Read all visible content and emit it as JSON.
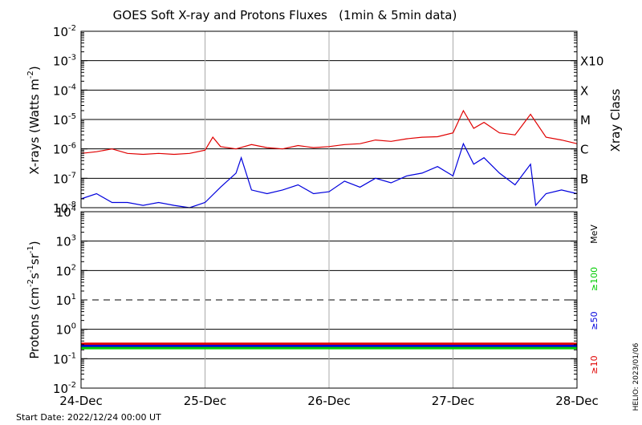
{
  "chart_data": {
    "type": "line",
    "title": "GOES Soft X-ray and Protons Fluxes   (1min & 5min data)",
    "x_tick_labels": [
      "24-Dec",
      "25-Dec",
      "26-Dec",
      "27-Dec",
      "28-Dec"
    ],
    "xlim": [
      "2022-12-24T00:00",
      "2022-12-28T00:00"
    ],
    "start_date_label": "Start Date: 2022/12/24 00:00 UT",
    "footer_label": "HELIO: 2023/01/06",
    "xray_panel": {
      "ylabel_main": "X-rays (Watts m",
      "ylabel_exp": "-2",
      "ylabel_end": ")",
      "y_scale": "log",
      "ylim": [
        1e-08,
        0.01
      ],
      "y_tick_exponents": [
        "-8",
        "-7",
        "-6",
        "-5",
        "-4",
        "-3",
        "-2"
      ],
      "class_axis_label": "Xray Class",
      "class_labels": [
        {
          "label": "B",
          "flux": 1e-07
        },
        {
          "label": "C",
          "flux": 1e-06
        },
        {
          "label": "M",
          "flux": 1e-05
        },
        {
          "label": "X",
          "flux": 0.0001
        },
        {
          "label": "X10",
          "flux": 0.001
        }
      ],
      "gridlines": [
        1e-07,
        1e-06,
        1e-05,
        0.0001,
        0.001
      ],
      "series": [
        {
          "color": "#e00000",
          "x": [
            "2022-12-24T00:00",
            "2022-12-24T03:00",
            "2022-12-24T06:00",
            "2022-12-24T09:00",
            "2022-12-24T12:00",
            "2022-12-24T15:00",
            "2022-12-24T18:00",
            "2022-12-24T21:00",
            "2022-12-25T00:00",
            "2022-12-25T01:30",
            "2022-12-25T03:00",
            "2022-12-25T06:00",
            "2022-12-25T09:00",
            "2022-12-25T12:00",
            "2022-12-25T15:00",
            "2022-12-25T18:00",
            "2022-12-25T21:00",
            "2022-12-26T00:00",
            "2022-12-26T03:00",
            "2022-12-26T06:00",
            "2022-12-26T09:00",
            "2022-12-26T12:00",
            "2022-12-26T15:00",
            "2022-12-26T18:00",
            "2022-12-26T21:00",
            "2022-12-27T00:00",
            "2022-12-27T02:00",
            "2022-12-27T04:00",
            "2022-12-27T06:00",
            "2022-12-27T09:00",
            "2022-12-27T12:00",
            "2022-12-27T15:00",
            "2022-12-27T18:00",
            "2022-12-27T21:00",
            "2022-12-28T00:00"
          ],
          "y": [
            7e-07,
            8e-07,
            1e-06,
            7e-07,
            6.5e-07,
            7e-07,
            6.5e-07,
            7e-07,
            9e-07,
            2.5e-06,
            1.2e-06,
            1e-06,
            1.4e-06,
            1.1e-06,
            1e-06,
            1.3e-06,
            1.1e-06,
            1.2e-06,
            1.4e-06,
            1.5e-06,
            2e-06,
            1.8e-06,
            2.2e-06,
            2.5e-06,
            2.6e-06,
            3.5e-06,
            2e-05,
            5e-06,
            8e-06,
            3.5e-06,
            3e-06,
            1.5e-05,
            2.5e-06,
            2e-06,
            1.5e-06
          ]
        },
        {
          "color": "#0000dd",
          "x": [
            "2022-12-24T00:00",
            "2022-12-24T03:00",
            "2022-12-24T06:00",
            "2022-12-24T09:00",
            "2022-12-24T12:00",
            "2022-12-24T15:00",
            "2022-12-24T18:00",
            "2022-12-24T21:00",
            "2022-12-25T00:00",
            "2022-12-25T03:00",
            "2022-12-25T06:00",
            "2022-12-25T07:00",
            "2022-12-25T09:00",
            "2022-12-25T12:00",
            "2022-12-25T15:00",
            "2022-12-25T18:00",
            "2022-12-25T21:00",
            "2022-12-26T00:00",
            "2022-12-26T03:00",
            "2022-12-26T06:00",
            "2022-12-26T09:00",
            "2022-12-26T12:00",
            "2022-12-26T15:00",
            "2022-12-26T18:00",
            "2022-12-26T21:00",
            "2022-12-27T00:00",
            "2022-12-27T02:00",
            "2022-12-27T04:00",
            "2022-12-27T06:00",
            "2022-12-27T09:00",
            "2022-12-27T12:00",
            "2022-12-27T15:00",
            "2022-12-27T16:00",
            "2022-12-27T18:00",
            "2022-12-27T21:00",
            "2022-12-28T00:00"
          ],
          "y": [
            2e-08,
            3e-08,
            1.5e-08,
            1.5e-08,
            1.2e-08,
            1.5e-08,
            1.2e-08,
            1e-08,
            1.5e-08,
            5e-08,
            1.5e-07,
            5e-07,
            4e-08,
            3e-08,
            4e-08,
            6e-08,
            3e-08,
            3.5e-08,
            8e-08,
            5e-08,
            1e-07,
            7e-08,
            1.2e-07,
            1.5e-07,
            2.5e-07,
            1.2e-07,
            1.5e-06,
            3e-07,
            5e-07,
            1.5e-07,
            6e-08,
            3e-07,
            1.2e-08,
            3e-08,
            4e-08,
            3e-08
          ]
        }
      ]
    },
    "proton_panel": {
      "ylabel_main": "Protons (cm",
      "ylabel_exp1": "-2",
      "ylabel_mid": "s",
      "ylabel_exp2": "-1",
      "ylabel_mid2": "sr",
      "ylabel_exp3": "-1",
      "ylabel_end": ")",
      "y_scale": "log",
      "ylim": [
        0.01,
        10000
      ],
      "y_tick_labels": [
        {
          "base": "10",
          "exp": "-2"
        },
        {
          "base": "10",
          "exp": "-1"
        },
        {
          "base": "10",
          "exp": "0"
        },
        {
          "base": "10",
          "exp": "1"
        },
        {
          "base": "10",
          "exp": "2"
        },
        {
          "base": "10",
          "exp": "3"
        },
        {
          "base": "10",
          "exp": "4"
        }
      ],
      "gridlines": [
        0.1,
        1,
        100,
        1000
      ],
      "dashed_threshold": 10,
      "unit_label": "MeV",
      "legend": [
        {
          "name": "≥100",
          "color": "#00cc00"
        },
        {
          "name": "≥50",
          "color": "#0000dd"
        },
        {
          "name": "≥10",
          "color": "#e00000"
        }
      ],
      "series": [
        {
          "name": "≥10",
          "color": "#e00000",
          "x": [
            "2022-12-24T00:00",
            "2022-12-28T00:00"
          ],
          "y": [
            0.32,
            0.32
          ]
        },
        {
          "name": "≥50",
          "color": "#0000dd",
          "x": [
            "2022-12-24T00:00",
            "2022-12-28T00:00"
          ],
          "y": [
            0.27,
            0.27
          ]
        },
        {
          "name": "≥100",
          "color": "#00cc00",
          "x": [
            "2022-12-24T00:00",
            "2022-12-28T00:00"
          ],
          "y": [
            0.23,
            0.23
          ]
        }
      ]
    }
  }
}
